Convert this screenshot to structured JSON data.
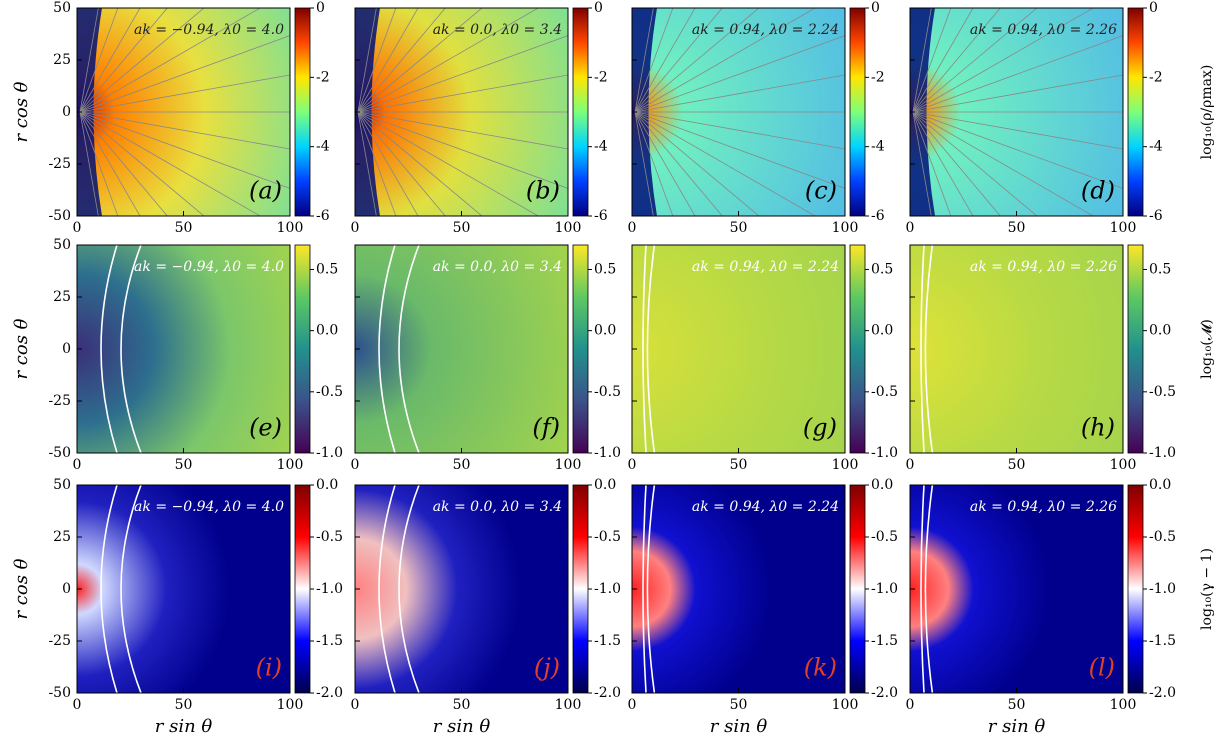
{
  "chart_data": [
    {
      "type": "heatmap",
      "xlim": [
        0,
        100
      ],
      "xticks": [
        0,
        50,
        100
      ],
      "ylim": [
        -50,
        50
      ],
      "yticks": [
        50,
        25,
        0,
        -25,
        -50
      ],
      "y_label": "r cos θ",
      "colorbar_label": "log₁₀(ρ/ρmax)",
      "colorbar": {
        "lim": [
          -6,
          0
        ],
        "ticks": [
          0,
          -2,
          -4,
          -6
        ],
        "colors": [
          "#00007f",
          "#0040ff",
          "#00d4ff",
          "#7dff7a",
          "#ffe600",
          "#ff4700",
          "#7f0000"
        ]
      },
      "panels": [
        {
          "annotation": "ak = −0.94, λ0 = 4.0",
          "label": "(a)"
        },
        {
          "annotation": "ak = 0.0, λ0 = 3.4",
          "label": "(b)"
        },
        {
          "annotation": "ak = 0.94, λ0 = 2.24",
          "label": "(c)"
        },
        {
          "annotation": "ak = 0.94, λ0 = 2.26",
          "label": "(d)"
        }
      ]
    },
    {
      "type": "heatmap",
      "xlim": [
        0,
        100
      ],
      "xticks": [
        0,
        50,
        100
      ],
      "ylim": [
        -50,
        50
      ],
      "yticks": [
        50,
        25,
        0,
        -25,
        -50
      ],
      "y_label": "r cos θ",
      "colorbar_label": "log₁₀(𝓜)",
      "colorbar": {
        "lim": [
          -1.0,
          0.7
        ],
        "ticks": [
          0.5,
          {
            "value": 0,
            "label": "0.0"
          },
          -0.5,
          {
            "value": -1,
            "label": "-1.0"
          }
        ],
        "colors": [
          "#440154",
          "#3b528b",
          "#21918c",
          "#5ec962",
          "#fde725"
        ]
      },
      "panels": [
        {
          "annotation": "ak = −0.94, λ0 = 4.0",
          "label": "(e)"
        },
        {
          "annotation": "ak = 0.0, λ0 = 3.4",
          "label": "(f)"
        },
        {
          "annotation": "ak = 0.94, λ0 = 2.24",
          "label": "(g)"
        },
        {
          "annotation": "ak = 0.94, λ0 = 2.26",
          "label": "(h)"
        }
      ]
    },
    {
      "type": "heatmap",
      "xlim": [
        0,
        100
      ],
      "xticks": [
        0,
        50,
        100
      ],
      "ylim": [
        -50,
        50
      ],
      "yticks": [
        50,
        25,
        0,
        -25,
        -50
      ],
      "y_label": "r cos θ",
      "x_label": "r sin θ",
      "colorbar_label": "log₁₀(γ − 1)",
      "colorbar": {
        "lim": [
          -2.0,
          0.0
        ],
        "ticks": [
          {
            "value": 0,
            "label": "0.0"
          },
          -0.5,
          {
            "value": -1,
            "label": "-1.0"
          },
          -1.5,
          {
            "value": -2,
            "label": "-2.0"
          }
        ],
        "colors": [
          "#00004c",
          "#0000ff",
          "#ffffff",
          "#ff0000",
          "#7f0000"
        ]
      },
      "panels": [
        {
          "annotation": "ak = −0.94, λ0 = 4.0",
          "label": "(i)"
        },
        {
          "annotation": "ak = 0.0, λ0 = 3.4",
          "label": "(j)"
        },
        {
          "annotation": "ak = 0.94, λ0 = 2.24",
          "label": "(k)"
        },
        {
          "annotation": "ak = 0.94, λ0 = 2.26",
          "label": "(l)"
        }
      ]
    }
  ]
}
